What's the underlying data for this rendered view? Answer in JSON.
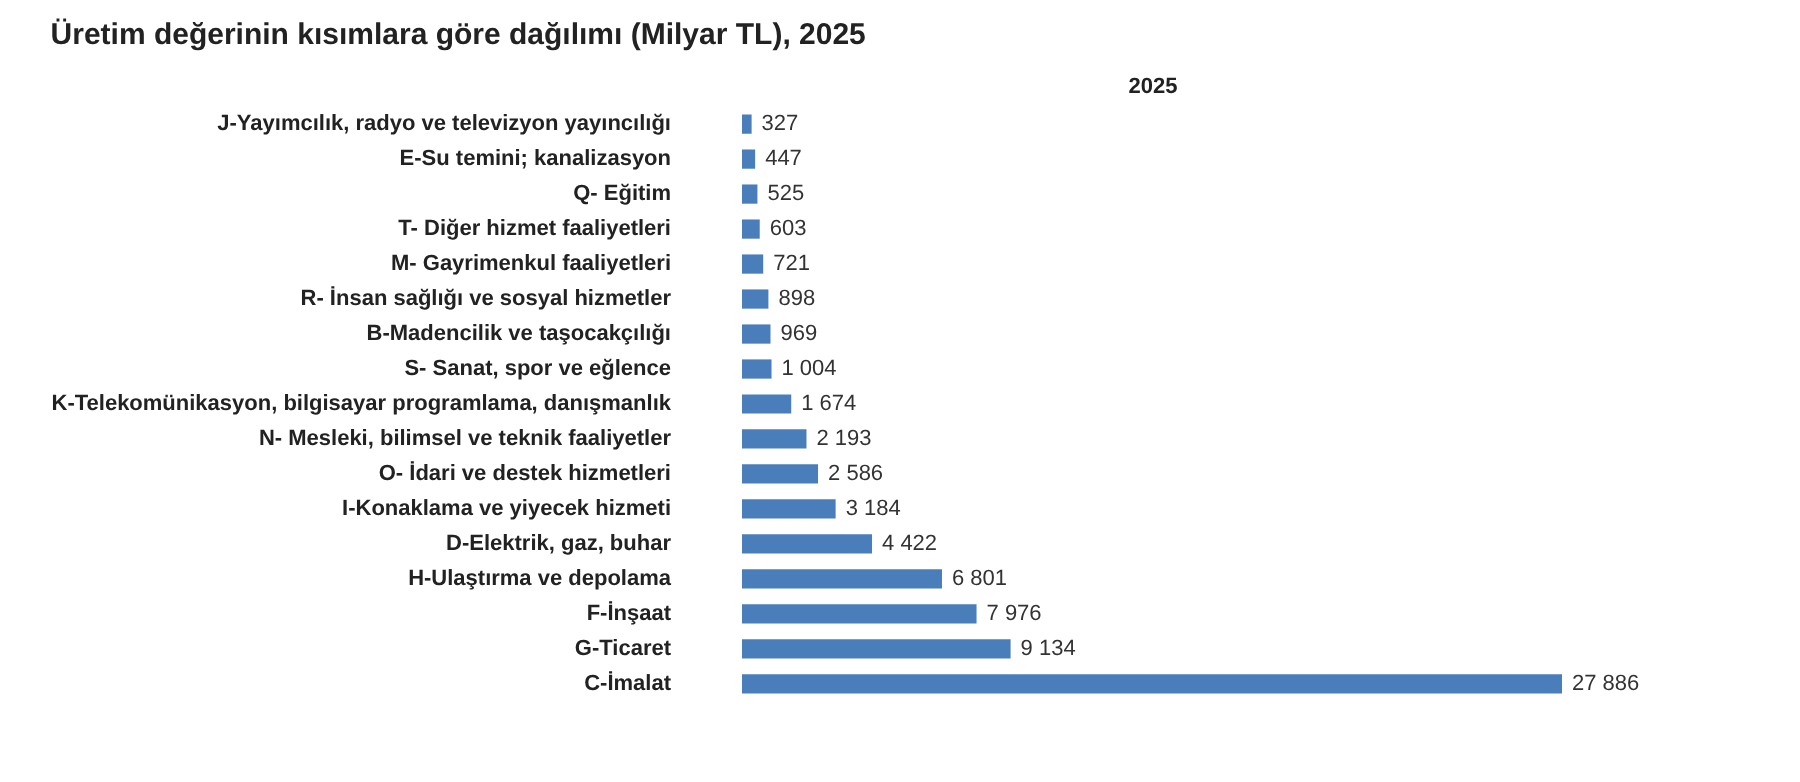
{
  "chart_data": {
    "type": "bar",
    "orientation": "horizontal",
    "title": "Üretim değerinin kısımlara göre dağılımı (Milyar TL), 2025",
    "subtitle": "2025",
    "categories": [
      "J-Yayımcılık, radyo ve televizyon yayıncılığı",
      "E-Su temini; kanalizasyon",
      "Q- Eğitim",
      "T- Diğer hizmet faaliyetleri",
      "M- Gayrimenkul faaliyetleri",
      "R- İnsan sağlığı ve sosyal hizmetler",
      "B-Madencilik ve taşocakçılığı",
      "S- Sanat, spor ve eğlence",
      "K-Telekomünikasyon, bilgisayar programlama, danışmanlık",
      "N- Mesleki, bilimsel ve teknik faaliyetler",
      "O- İdari ve destek hizmetleri",
      "I-Konaklama ve yiyecek hizmeti",
      "D-Elektrik, gaz, buhar",
      "H-Ulaştırma ve depolama",
      "F-İnşaat",
      "G-Ticaret",
      "C-İmalat"
    ],
    "values": [
      327,
      447,
      525,
      603,
      721,
      898,
      969,
      1004,
      1674,
      2193,
      2586,
      3184,
      4422,
      6801,
      7976,
      9134,
      27886
    ],
    "value_labels": [
      "327",
      "447",
      "525",
      "603",
      "721",
      "898",
      "969",
      "1 004",
      "1 674",
      "2 193",
      "2 586",
      "3 184",
      "4 422",
      "6 801",
      "7 976",
      "9 134",
      "27 886"
    ],
    "color": "#4a7ebb",
    "grid": false
  }
}
